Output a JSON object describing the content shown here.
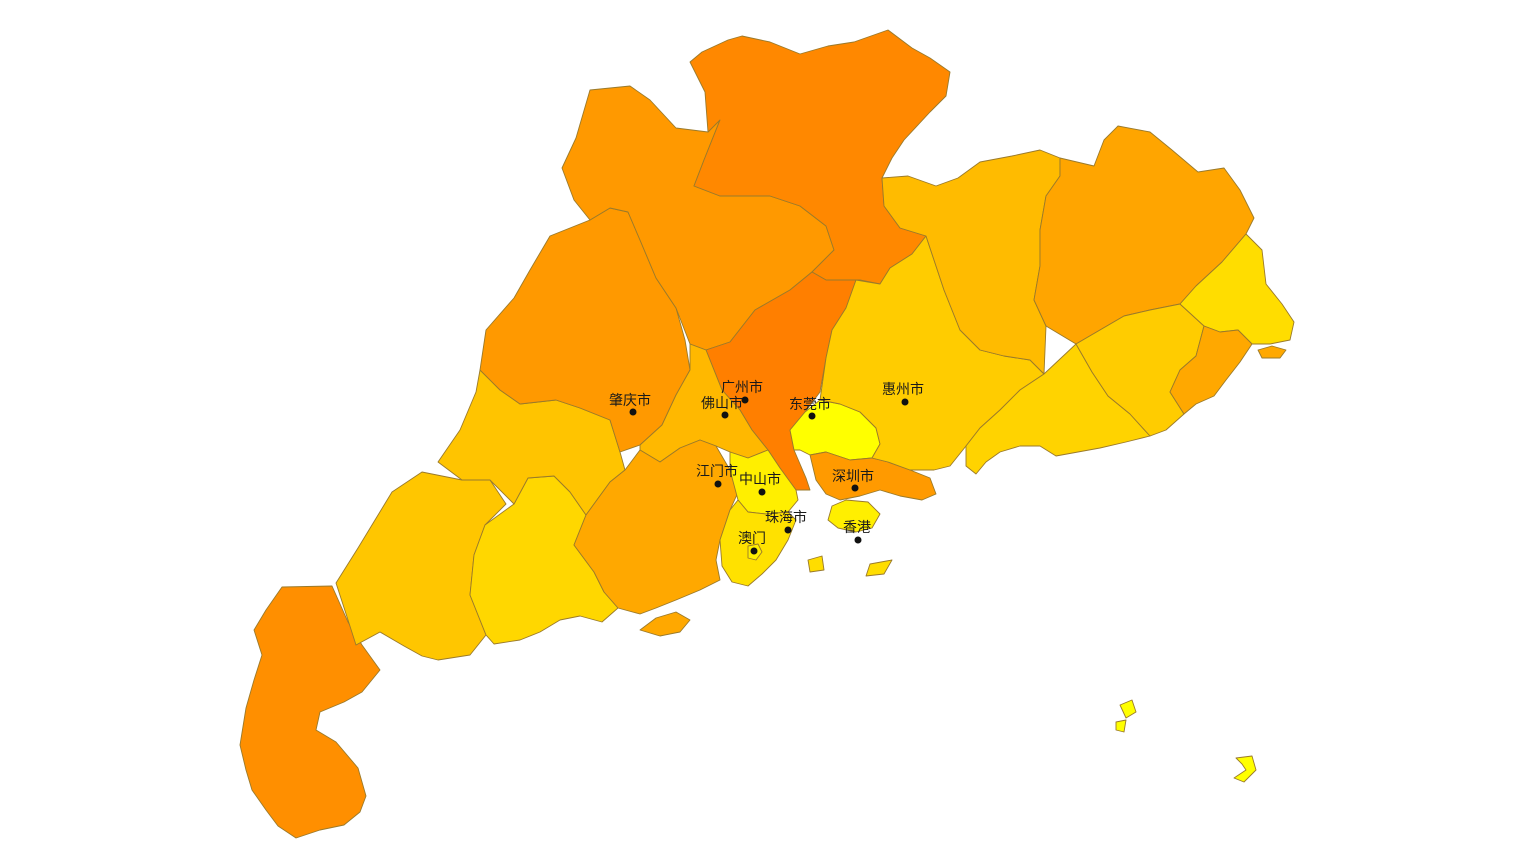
{
  "map": {
    "regions": [
      {
        "id": "guangzhou",
        "fill": "#ff7f00"
      },
      {
        "id": "shaoguan",
        "fill": "#ff8800"
      },
      {
        "id": "qingyuan",
        "fill": "#ff9900"
      },
      {
        "id": "zhaoqing",
        "fill": "#ff9900"
      },
      {
        "id": "yunfu",
        "fill": "#ffc400"
      },
      {
        "id": "foshan",
        "fill": "#ffb800"
      },
      {
        "id": "jiangmen",
        "fill": "#ffa800"
      },
      {
        "id": "zhongshan",
        "fill": "#ffef00"
      },
      {
        "id": "zhuhai",
        "fill": "#ffe100"
      },
      {
        "id": "macau",
        "fill": "#ffef00"
      },
      {
        "id": "dongguan",
        "fill": "#ffff00"
      },
      {
        "id": "shenzhen",
        "fill": "#ff9a00"
      },
      {
        "id": "huizhou",
        "fill": "#ffcc00"
      },
      {
        "id": "heyuan",
        "fill": "#ffbb00"
      },
      {
        "id": "meizhou",
        "fill": "#ffa500"
      },
      {
        "id": "shanwei",
        "fill": "#ffd300"
      },
      {
        "id": "jieyang",
        "fill": "#ffcc00"
      },
      {
        "id": "chaozhou",
        "fill": "#ffdd00"
      },
      {
        "id": "shantou",
        "fill": "#ffa800"
      },
      {
        "id": "maoming",
        "fill": "#ffc600"
      },
      {
        "id": "yangjiang",
        "fill": "#ffd700"
      },
      {
        "id": "zhanjiang",
        "fill": "#ff8f00"
      },
      {
        "id": "hongkong",
        "fill": "#ffef00"
      },
      {
        "id": "south-islands",
        "fill": "#ffff00"
      }
    ],
    "cities": [
      {
        "name": "肇庆市"
      },
      {
        "name": "广州市"
      },
      {
        "name": "佛山市"
      },
      {
        "name": "东莞市"
      },
      {
        "name": "惠州市"
      },
      {
        "name": "江门市"
      },
      {
        "name": "中山市"
      },
      {
        "name": "深圳市"
      },
      {
        "name": "珠海市"
      },
      {
        "name": "香港"
      },
      {
        "name": "澳门"
      }
    ]
  }
}
